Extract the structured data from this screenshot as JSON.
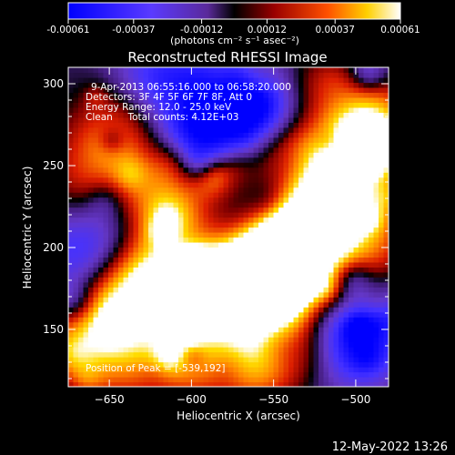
{
  "colorbar": {
    "ticks": [
      -0.00061,
      -0.00037,
      -0.00012,
      0.00012,
      0.00037,
      0.00061
    ],
    "tick_labels": [
      "-0.00061",
      "-0.00037",
      "-0.00012",
      "0.00012",
      "0.00037",
      "0.00061"
    ],
    "units_label": "(photons cm⁻² s⁻¹ asec⁻²)",
    "range": [
      -0.00061,
      0.00061
    ]
  },
  "chart_data": {
    "type": "heatmap",
    "title": "Reconstructed RHESSI Image",
    "xlabel": "Heliocentric X (arcsec)",
    "ylabel": "Heliocentric Y (arcsec)",
    "xlim": [
      -675,
      -480
    ],
    "ylim": [
      115,
      310
    ],
    "x_ticks": [
      -650,
      -600,
      -550,
      -500
    ],
    "y_ticks": [
      150,
      200,
      250,
      300
    ],
    "annotations": [
      "9-Apr-2013 06:55:16.000 to 06:58:20.000",
      "Detectors: 3F 4F 5F 6F 7F 8F, Att 0",
      "Energy Range: 12.0 - 25.0 keV",
      "Clean     Total counts: 4.12E+03",
      "Position of Peak = [-539,192]"
    ],
    "peak": {
      "x": -539,
      "y": 192
    },
    "colormap": [
      "#0000ff",
      "#3f2fff",
      "#6a35c8",
      "#3a1a60",
      "#000000",
      "#700000",
      "#e02000",
      "#ff8a00",
      "#ffe300",
      "#ffffff"
    ],
    "grid": false
  },
  "footer": {
    "timestamp": "12-May-2022 13:26"
  }
}
